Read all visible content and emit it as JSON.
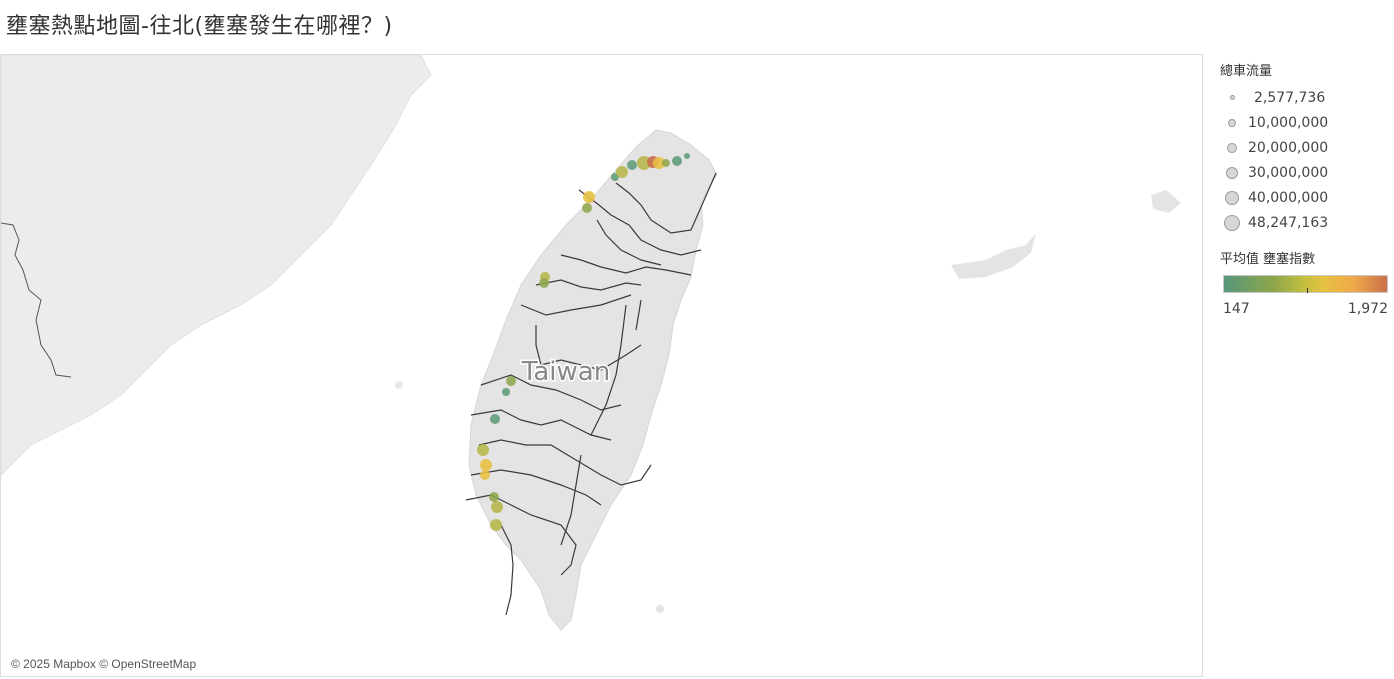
{
  "title": "壅塞熱點地圖-往北(壅塞發生在哪裡？)",
  "map": {
    "country_label": "Taiwan",
    "attribution": "© 2025 Mapbox © OpenStreetMap"
  },
  "size_legend": {
    "title": "總車流量",
    "items": [
      {
        "label": "2,577,736"
      },
      {
        "label": "10,000,000"
      },
      {
        "label": "20,000,000"
      },
      {
        "label": "30,000,000"
      },
      {
        "label": "40,000,000"
      },
      {
        "label": "48,247,163"
      }
    ]
  },
  "color_legend": {
    "title": "平均值 壅塞指數",
    "min_label": "147",
    "max_label": "1,972"
  },
  "colors": {
    "ramp_low": "#55977a",
    "ramp_mid": "#e8c041",
    "ramp_high": "#c96f4a"
  }
}
